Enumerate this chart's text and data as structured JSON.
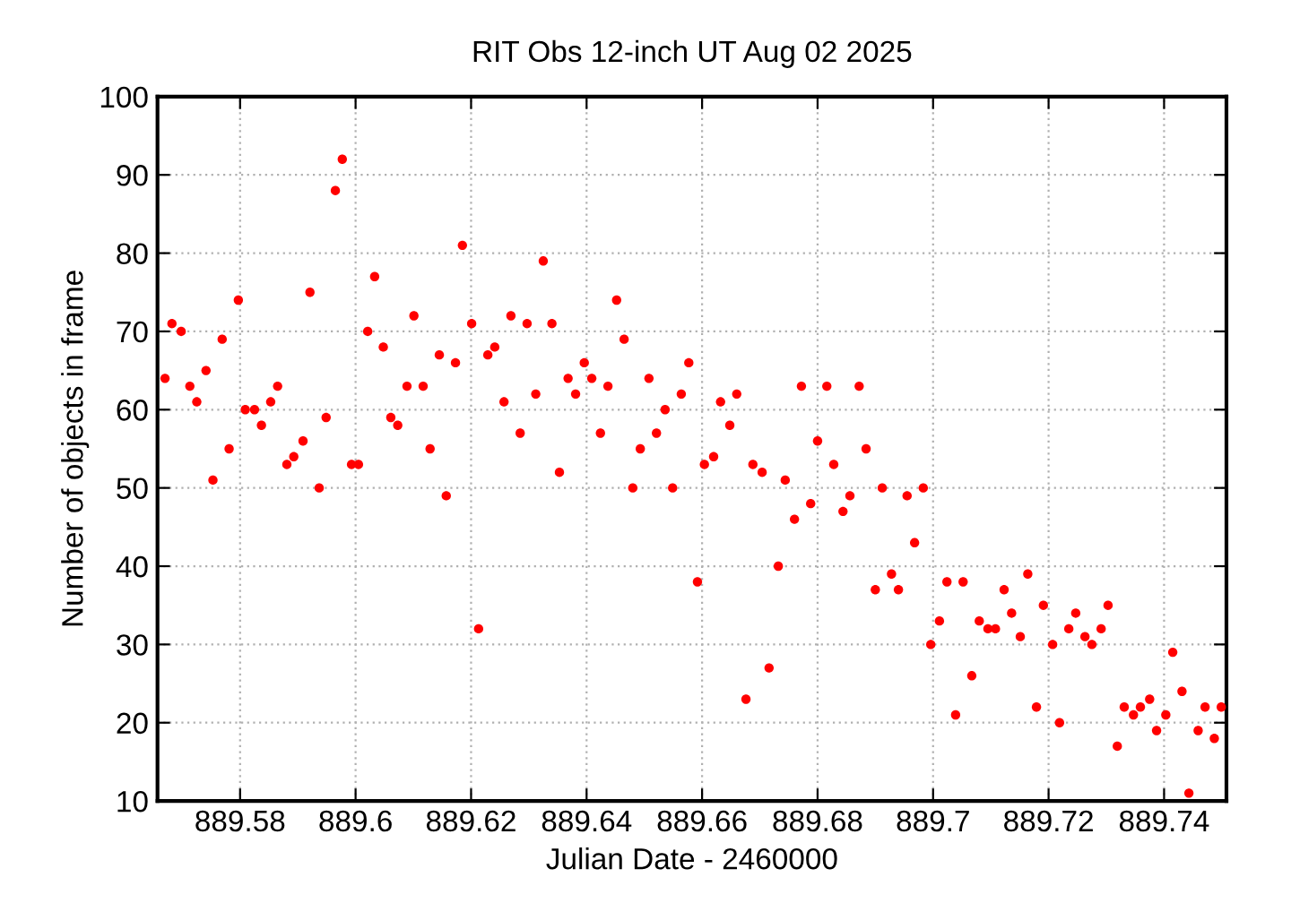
{
  "chart_data": {
    "type": "scatter",
    "title": "RIT Obs 12-inch UT Aug 02 2025",
    "xlabel": "Julian Date - 2460000",
    "ylabel": "Number of objects in frame",
    "x": [
      889.567,
      889.5682,
      889.5698,
      889.5713,
      889.5725,
      889.5741,
      889.5753,
      889.5769,
      889.5781,
      889.5797,
      889.5809,
      889.5825,
      889.5837,
      889.5853,
      889.5865,
      889.5881,
      889.5893,
      889.5909,
      889.5921,
      889.5937,
      889.5949,
      889.5965,
      889.5977,
      889.5993,
      889.6005,
      889.6021,
      889.6033,
      889.6048,
      889.6061,
      889.6073,
      889.6089,
      889.6101,
      889.6117,
      889.6129,
      889.6145,
      889.6157,
      889.6173,
      889.6185,
      889.6201,
      889.6213,
      889.6229,
      889.6241,
      889.6257,
      889.6269,
      889.6285,
      889.6297,
      889.6312,
      889.6325,
      889.634,
      889.6353,
      889.6368,
      889.6381,
      889.6396,
      889.6409,
      889.6424,
      889.6437,
      889.6452,
      889.6465,
      889.648,
      889.6493,
      889.6508,
      889.6521,
      889.6536,
      889.6549,
      889.6564,
      889.6577,
      889.6592,
      889.6604,
      889.662,
      889.6632,
      889.6648,
      889.666,
      889.6676,
      889.6688,
      889.6704,
      889.6716,
      889.6732,
      889.6744,
      889.676,
      889.6772,
      889.6788,
      889.68,
      889.6816,
      889.6828,
      889.6844,
      889.6856,
      889.6872,
      889.6884,
      889.69,
      889.6912,
      889.6928,
      889.694,
      889.6955,
      889.6968,
      889.6983,
      889.6996,
      889.7011,
      889.7024,
      889.7039,
      889.7052,
      889.7067,
      889.708,
      889.7095,
      889.7108,
      889.7123,
      889.7136,
      889.7151,
      889.7164,
      889.7179,
      889.7191,
      889.7207,
      889.7219,
      889.7235,
      889.7247,
      889.7263,
      889.7275,
      889.7291,
      889.7303,
      889.7319,
      889.7331,
      889.7347,
      889.7359,
      889.7375,
      889.7387,
      889.7403,
      889.7415,
      889.7431,
      889.7443,
      889.7459,
      889.7471,
      889.7487,
      889.7499
    ],
    "series": [
      {
        "color": "#ff0000",
        "values": [
          64,
          71,
          70,
          63,
          61,
          65,
          51,
          69,
          55,
          74,
          60,
          60,
          58,
          61,
          63,
          53,
          54,
          56,
          75,
          50,
          59,
          88,
          92,
          53,
          53,
          70,
          77,
          68,
          59,
          58,
          63,
          72,
          63,
          55,
          67,
          49,
          66,
          81,
          71,
          32,
          67,
          68,
          61,
          72,
          57,
          71,
          62,
          79,
          71,
          52,
          64,
          62,
          66,
          64,
          57,
          63,
          74,
          69,
          50,
          55,
          64,
          57,
          60,
          50,
          62,
          66,
          38,
          53,
          54,
          61,
          58,
          62,
          23,
          53,
          52,
          27,
          40,
          51,
          46,
          63,
          48,
          56,
          63,
          53,
          47,
          49,
          63,
          55,
          37,
          50,
          39,
          37,
          49,
          43,
          50,
          30,
          33,
          38,
          21,
          38,
          26,
          33,
          32,
          32,
          37,
          34,
          31,
          39,
          22,
          35,
          30,
          20,
          32,
          34,
          31,
          30,
          32,
          35,
          17,
          22,
          21,
          22,
          23,
          19,
          21,
          29,
          24,
          11,
          19,
          22,
          18,
          22
        ]
      }
    ],
    "xlim": [
      889.5657,
      889.7508
    ],
    "xticks": [
      889.58,
      889.6,
      889.62,
      889.64,
      889.66,
      889.68,
      889.7,
      889.72,
      889.74
    ],
    "ylim": [
      10,
      100
    ],
    "yticks": [
      10,
      20,
      30,
      40,
      50,
      60,
      70,
      80,
      90,
      100
    ],
    "grid": true,
    "marker": "circle",
    "legend": false
  }
}
